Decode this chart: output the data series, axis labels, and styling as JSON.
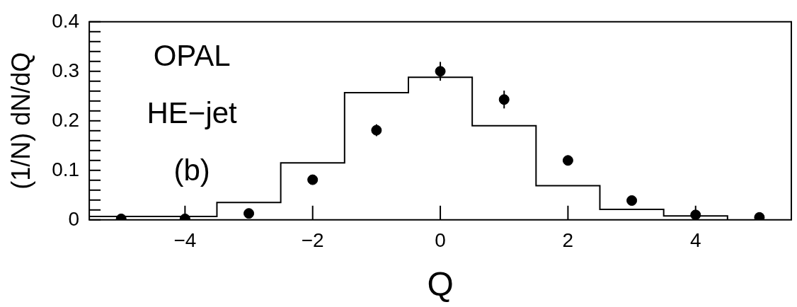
{
  "chart_data": {
    "type": "histogram",
    "xlabel": "Q",
    "ylabel": "(1/N) dN/dQ",
    "annotations": [
      "OPAL",
      "HE−jet",
      "(b)"
    ],
    "series": [
      {
        "type": "histogram",
        "color": "#000000",
        "bins": [
          -5.5,
          -4.5,
          -3.5,
          -2.5,
          -1.5,
          -0.5,
          0.5,
          1.5,
          2.5,
          3.5,
          4.5
        ],
        "values": [
          0.007,
          0.007,
          0.035,
          0.115,
          0.257,
          0.288,
          0.19,
          0.069,
          0.021,
          0.008
        ]
      },
      {
        "type": "scatter",
        "color": "#000000",
        "x": [
          -5,
          -4,
          -3,
          -2,
          -1,
          0,
          1,
          2,
          3,
          4,
          5
        ],
        "values": [
          0.002,
          0.002,
          0.013,
          0.081,
          0.181,
          0.3,
          0.243,
          0.12,
          0.039,
          0.01,
          0.005
        ],
        "errors": [
          null,
          null,
          null,
          null,
          0.012,
          0.019,
          0.018,
          0.01,
          null,
          null,
          null
        ]
      }
    ],
    "marker": "circle",
    "xlim": [
      -5.5,
      5.5
    ],
    "ylim": [
      0,
      0.4
    ],
    "xticks": [
      {
        "value": -4,
        "label": "−4"
      },
      {
        "value": -2,
        "label": "−2"
      },
      0,
      2,
      4
    ],
    "yticks": [
      0,
      {
        "value": 0.02,
        "label": null
      },
      {
        "value": 0.04,
        "label": null
      },
      {
        "value": 0.06,
        "label": null
      },
      {
        "value": 0.08,
        "label": null
      },
      0.1,
      {
        "value": 0.12,
        "label": null
      },
      {
        "value": 0.14,
        "label": null
      },
      {
        "value": 0.16,
        "label": null
      },
      {
        "value": 0.18,
        "label": null
      },
      0.2,
      {
        "value": 0.22,
        "label": null
      },
      {
        "value": 0.24,
        "label": null
      },
      {
        "value": 0.26,
        "label": null
      },
      {
        "value": 0.28,
        "label": null
      },
      0.3,
      {
        "value": 0.32,
        "label": null
      },
      {
        "value": 0.34,
        "label": null
      },
      {
        "value": 0.36,
        "label": null
      },
      {
        "value": 0.38,
        "label": null
      },
      0.4
    ],
    "grid": false,
    "legend": false
  }
}
